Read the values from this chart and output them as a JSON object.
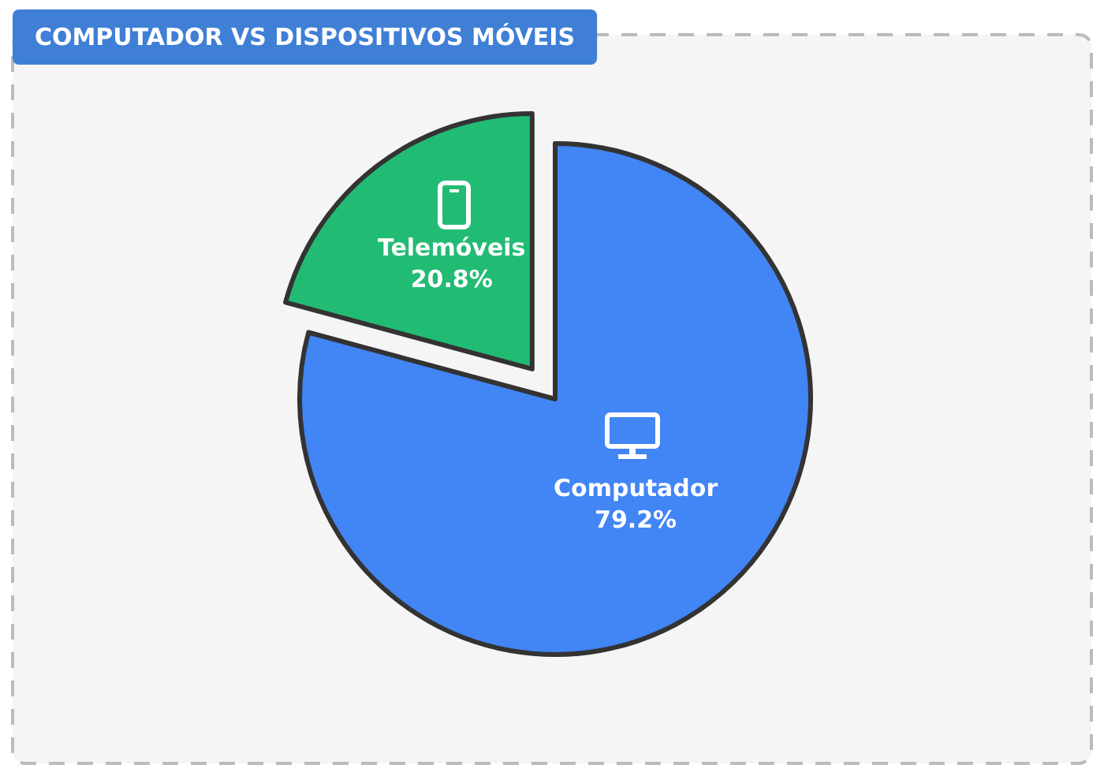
{
  "chart_data": {
    "type": "pie",
    "title": "COMPUTADOR VS DISPOSITIVOS MÓVEIS",
    "categories": [
      "Computador",
      "Telemóveis"
    ],
    "values": [
      79.2,
      20.8
    ],
    "colors": [
      "#4285f4",
      "#22bb74"
    ],
    "value_labels": [
      "79.2%",
      "20.8%"
    ],
    "legend": false
  }
}
